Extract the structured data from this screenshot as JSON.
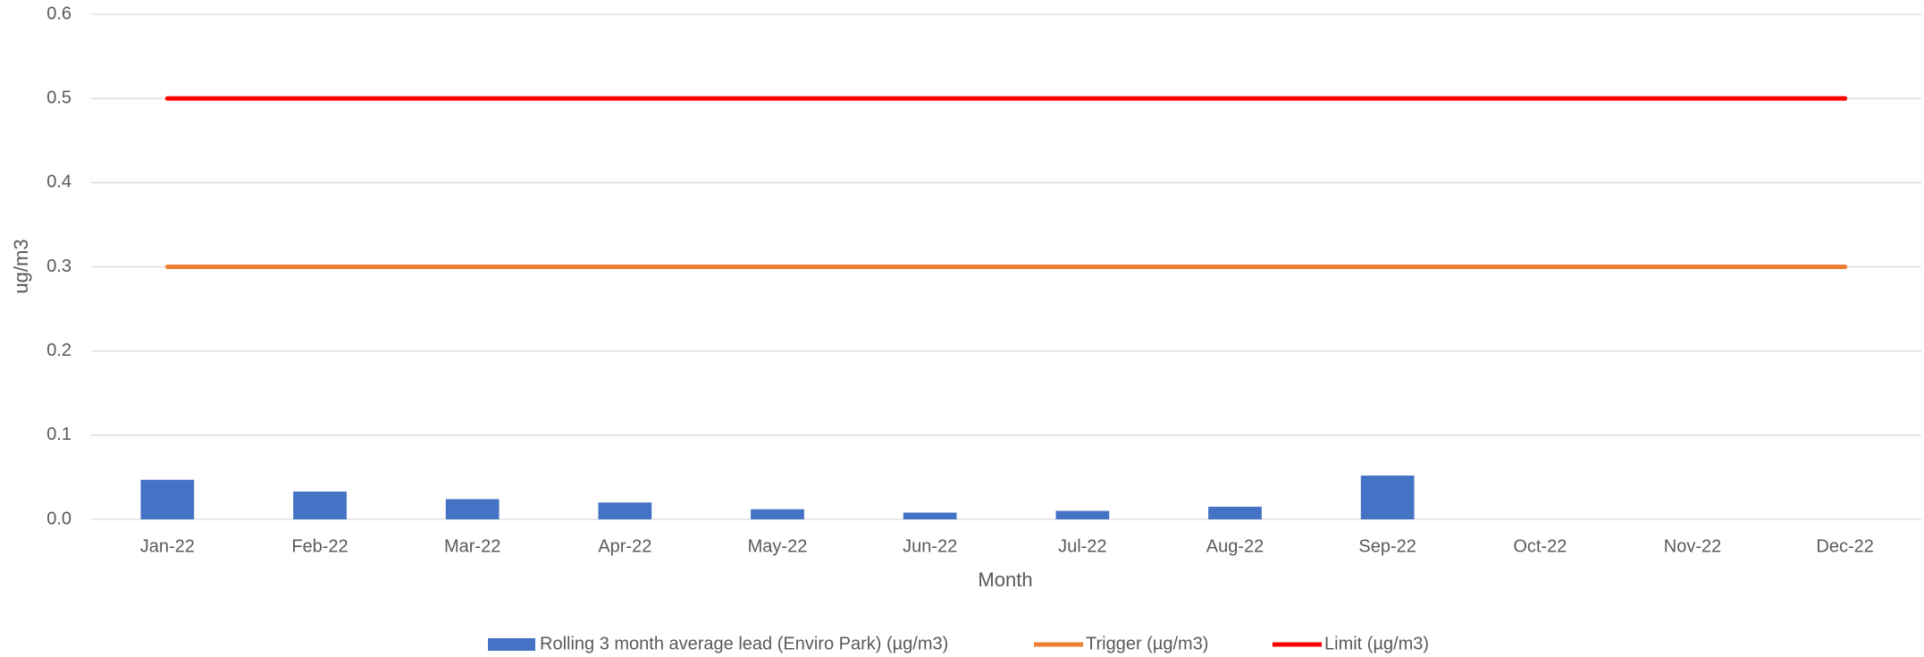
{
  "chart_data": {
    "type": "bar",
    "y_label": "ug/m3",
    "x_label": "Month",
    "categories": [
      "Jan-22",
      "Feb-22",
      "Mar-22",
      "Apr-22",
      "May-22",
      "Jun-22",
      "Jul-22",
      "Aug-22",
      "Sep-22",
      "Oct-22",
      "Nov-22",
      "Dec-22"
    ],
    "series": [
      {
        "name": "Rolling 3 month average lead (Enviro Park) (µg/m3)",
        "type": "bar",
        "color": "#4472c4",
        "values": [
          0.047,
          0.033,
          0.024,
          0.02,
          0.012,
          0.008,
          0.01,
          0.015,
          0.052,
          null,
          null,
          null
        ]
      },
      {
        "name": "Trigger (µg/m3)",
        "type": "line",
        "color": "#ed7d31",
        "values": [
          0.3,
          0.3,
          0.3,
          0.3,
          0.3,
          0.3,
          0.3,
          0.3,
          0.3,
          0.3,
          0.3,
          0.3
        ]
      },
      {
        "name": "Limit (µg/m3)",
        "type": "line",
        "color": "#ff0000",
        "values": [
          0.5,
          0.5,
          0.5,
          0.5,
          0.5,
          0.5,
          0.5,
          0.5,
          0.5,
          0.5,
          0.5,
          0.5
        ]
      }
    ],
    "ylim": [
      0,
      0.6
    ],
    "yticks": [
      {
        "value": 0,
        "label": "0.0"
      },
      0.1,
      0.2,
      0.3,
      0.4,
      0.5,
      0.6
    ],
    "grid": true,
    "legend": "bottom"
  }
}
